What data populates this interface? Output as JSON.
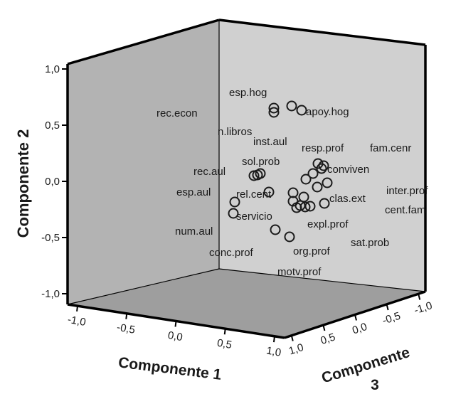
{
  "chart_data": {
    "type": "scatter",
    "variant": "3d-component-plot",
    "title": "",
    "axes": {
      "x": {
        "label": "Componente 1",
        "ticks": [
          "-1,0",
          "-0,5",
          "0,0",
          "0,5",
          "1,0"
        ]
      },
      "y": {
        "label": "Componente 2",
        "ticks": [
          "1,0",
          "0,5",
          "0,0",
          "-0,5",
          "-1,0"
        ]
      },
      "z": {
        "label_line1": "Componente",
        "label_line2": "3",
        "ticks": [
          "1,0",
          "0,5",
          "0,0",
          "-0,5",
          "-1,0"
        ]
      }
    },
    "ylim": [
      -1,
      1
    ],
    "marker": "open circle",
    "point_labels": [
      "esp.hog",
      "rec.econ",
      "apoy.hog",
      "n.libros",
      "inst.aul",
      "resp.prof",
      "fam.cenr",
      "sol.prob",
      "conviven",
      "rec.aul",
      "esp.aul",
      "rel.cent",
      "clas.ext",
      "inter.prof",
      "cent.fam",
      "servicio",
      "expl.prof",
      "num.aul",
      "sat.prob",
      "conc.prof",
      "org.prof",
      "motv.prof"
    ],
    "point_count_estimate": 30
  }
}
